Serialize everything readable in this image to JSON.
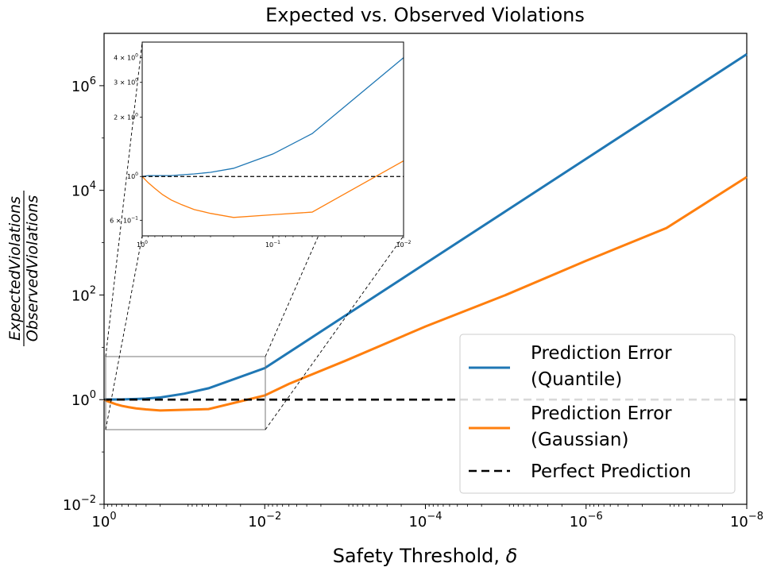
{
  "chart_data": {
    "type": "line",
    "title": "Expected vs. Observed Violations",
    "xlabel_prefix": "Safety Threshold, ",
    "xlabel_symbol": "δ",
    "ylabel_numerator": "ExpectedViolations",
    "ylabel_denominator": "ObservedViolations",
    "xscale": "log",
    "yscale": "log",
    "xlim_exponents": [
      0,
      -8
    ],
    "ylim_exponents": [
      -2,
      7
    ],
    "x_ticks": [
      {
        "base": "10",
        "exp": "0"
      },
      {
        "base": "10",
        "exp": "−2"
      },
      {
        "base": "10",
        "exp": "−4"
      },
      {
        "base": "10",
        "exp": "−6"
      },
      {
        "base": "10",
        "exp": "−8"
      }
    ],
    "y_ticks": [
      {
        "base": "10",
        "exp": "−2",
        "value_exp": -2
      },
      {
        "base": "10",
        "exp": "0",
        "value_exp": 0
      },
      {
        "base": "10",
        "exp": "2",
        "value_exp": 2
      },
      {
        "base": "10",
        "exp": "4",
        "value_exp": 4
      },
      {
        "base": "10",
        "exp": "6",
        "value_exp": 6
      }
    ],
    "series": [
      {
        "name": "Prediction Error (Quantile)",
        "legend_lines": [
          "Prediction Error",
          "(Quantile)"
        ],
        "color": "#1f77b4",
        "x": [
          1,
          0.9,
          0.8,
          0.7,
          0.6,
          0.5,
          0.4,
          0.3,
          0.2,
          0.1,
          0.05,
          0.01,
          0.001,
          0.0001,
          1e-05,
          1e-06,
          1e-07,
          1e-08
        ],
        "y": [
          1.0,
          1.01,
          1.01,
          1.01,
          1.01,
          1.02,
          1.03,
          1.05,
          1.1,
          1.3,
          1.65,
          4.0,
          40,
          400,
          4000,
          40000,
          400000,
          4000000
        ]
      },
      {
        "name": "Prediction Error (Gaussian)",
        "legend_lines": [
          "Prediction Error",
          "(Gaussian)"
        ],
        "color": "#ff7f0e",
        "x": [
          1,
          0.9,
          0.8,
          0.7,
          0.6,
          0.5,
          0.4,
          0.3,
          0.2,
          0.1,
          0.05,
          0.01,
          0.005,
          0.001,
          0.0001,
          1e-05,
          1e-06,
          1e-07,
          1e-08
        ],
        "y": [
          1.0,
          0.93,
          0.87,
          0.81,
          0.76,
          0.72,
          0.68,
          0.65,
          0.62,
          0.64,
          0.66,
          1.2,
          2.0,
          5.5,
          25,
          100,
          450,
          1900,
          18000
        ]
      },
      {
        "name": "Perfect Prediction",
        "legend_lines": [
          "Perfect Prediction"
        ],
        "color": "#000000",
        "dashed": true,
        "x": [
          1,
          1e-08
        ],
        "y": [
          1,
          1
        ]
      }
    ],
    "legend_location": "lower-right",
    "inset": {
      "xlim_exponents": [
        0,
        -2
      ],
      "ylim": [
        0.5,
        4.8
      ],
      "x_ticks": [
        {
          "base": "10",
          "exp": "0"
        },
        {
          "base": "10",
          "exp": "−1"
        },
        {
          "base": "10",
          "exp": "−2"
        }
      ],
      "y_ticks": [
        {
          "mant": "6 × 10",
          "exp": "−1",
          "value": 0.6
        },
        {
          "mant": "10",
          "exp": "0",
          "value": 1
        },
        {
          "mant": "2 × 10",
          "exp": "0",
          "value": 2
        },
        {
          "mant": "3 × 10",
          "exp": "0",
          "value": 3
        },
        {
          "mant": "4 × 10",
          "exp": "0",
          "value": 4
        }
      ]
    }
  }
}
